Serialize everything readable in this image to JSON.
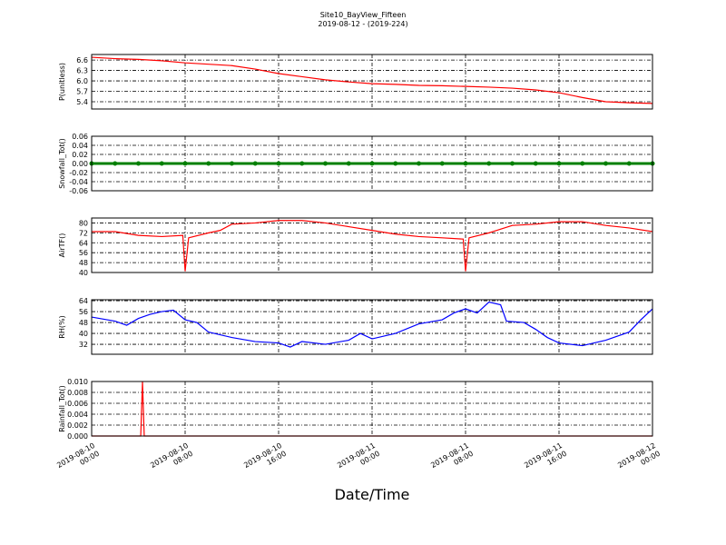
{
  "title": "Site10_BayView_Fifteen",
  "subtitle": "2019-08-12 - (2019-224)",
  "xlabel": "Date/Time",
  "chart_data": [
    {
      "type": "line",
      "ylabel": "P(unitless)",
      "color": "#ff0000",
      "x": [
        0,
        2,
        4,
        6,
        8,
        10,
        12,
        14,
        16,
        18,
        20,
        22,
        24,
        26,
        28,
        30,
        32,
        34,
        36,
        38,
        40,
        42,
        44,
        46,
        48
      ],
      "values": [
        6.68,
        6.64,
        6.62,
        6.58,
        6.52,
        6.48,
        6.44,
        6.34,
        6.21,
        6.12,
        6.03,
        5.97,
        5.92,
        5.9,
        5.87,
        5.86,
        5.84,
        5.82,
        5.79,
        5.74,
        5.66,
        5.52,
        5.4,
        5.37,
        5.35
      ],
      "xlim": [
        0,
        48
      ],
      "xticks": [
        0,
        8,
        16,
        24,
        32,
        40,
        48
      ],
      "ylim": [
        5.19,
        6.76
      ],
      "yticks": [
        5.4,
        5.7,
        {
          "value": 6.0,
          "label": "6.0"
        },
        6.3,
        6.6
      ],
      "grid": true
    },
    {
      "type": "line",
      "ylabel": "Snowfall_Tot()",
      "color": "#008000",
      "marker": true,
      "x": [
        0,
        2,
        4,
        6,
        8,
        10,
        12,
        14,
        16,
        18,
        20,
        22,
        24,
        26,
        28,
        30,
        32,
        34,
        36,
        38,
        40,
        42,
        44,
        46,
        48
      ],
      "values": [
        0,
        0,
        0,
        0,
        0,
        0,
        0,
        0,
        0,
        0,
        0,
        0,
        0,
        0,
        0,
        0,
        0,
        0,
        0,
        0,
        0,
        0,
        0,
        0,
        0
      ],
      "xlim": [
        0,
        48
      ],
      "xticks": [
        0,
        8,
        16,
        24,
        32,
        40,
        48
      ],
      "ylim": [
        -0.06,
        0.06
      ],
      "yticks": [
        -0.06,
        -0.04,
        -0.02,
        {
          "value": 0,
          "label": "0.00"
        },
        0.02,
        0.04,
        0.06
      ],
      "grid": true
    },
    {
      "type": "line",
      "ylabel": "AirTF()",
      "color": "#ff0000",
      "x": [
        0,
        2,
        4,
        6,
        7.8,
        8,
        8.3,
        10,
        11,
        12,
        14,
        16,
        18,
        20,
        22,
        24,
        26,
        28,
        30,
        31.8,
        32,
        32.3,
        34,
        36,
        38,
        40,
        42,
        44,
        46,
        48
      ],
      "values": [
        73,
        73,
        70,
        69,
        70,
        41,
        68,
        72,
        74,
        79,
        80,
        82,
        82,
        80,
        77,
        74,
        71,
        69,
        68,
        67,
        41,
        68,
        72,
        78,
        79,
        81,
        81,
        78,
        76,
        73
      ],
      "xlim": [
        0,
        48
      ],
      "xticks": [
        0,
        8,
        16,
        24,
        32,
        40,
        48
      ],
      "ylim": [
        40,
        84
      ],
      "yticks": [
        40,
        48,
        56,
        64,
        72,
        80
      ],
      "grid": true
    },
    {
      "type": "line",
      "ylabel": "RH(%)",
      "color": "#0000ff",
      "x": [
        0,
        2,
        3,
        4,
        5,
        6,
        7,
        8,
        9,
        10,
        12,
        14,
        16,
        17,
        18,
        20,
        22,
        23,
        24,
        26,
        28,
        30,
        31,
        32,
        33,
        34,
        35,
        35.5,
        37,
        38,
        39,
        40,
        42,
        44,
        45,
        46,
        47,
        48
      ],
      "values": [
        52,
        49,
        46,
        51,
        54,
        56,
        57,
        50,
        48,
        41,
        37,
        34,
        33,
        30,
        34,
        32,
        35,
        40,
        36,
        40,
        47,
        50,
        55,
        58,
        55,
        63,
        61,
        49,
        48,
        43,
        37,
        33,
        31,
        35,
        38,
        41,
        50,
        58
      ],
      "xlim": [
        0,
        48
      ],
      "xticks": [
        0,
        8,
        16,
        24,
        32,
        40,
        48
      ],
      "ylim": [
        24.7,
        64.7
      ],
      "yticks": [
        32,
        40,
        48,
        56,
        64
      ],
      "grid": true
    },
    {
      "type": "line",
      "ylabel": "Rainfall_Tot()",
      "color": "#ff0000",
      "x": [
        0,
        4.2,
        4.35,
        4.5,
        48
      ],
      "values": [
        0,
        0,
        0.01,
        0,
        0
      ],
      "xlim": [
        0,
        48
      ],
      "xticks": [
        {
          "value": 0,
          "label": "2019-08-10 00:00"
        },
        {
          "value": 8,
          "label": "2019-08-10 08:00"
        },
        {
          "value": 16,
          "label": "2019-08-10 16:00"
        },
        {
          "value": 24,
          "label": "2019-08-11 00:00"
        },
        {
          "value": 32,
          "label": "2019-08-11 08:00"
        },
        {
          "value": 40,
          "label": "2019-08-11 16:00"
        },
        {
          "value": 48,
          "label": "2019-08-12 00:00"
        }
      ],
      "ylim": [
        0,
        0.01
      ],
      "yticks": [
        {
          "value": 0,
          "label": "0.000"
        },
        0.002,
        0.004,
        0.006,
        0.008,
        {
          "value": 0.01,
          "label": "0.010"
        }
      ],
      "grid": true
    }
  ]
}
